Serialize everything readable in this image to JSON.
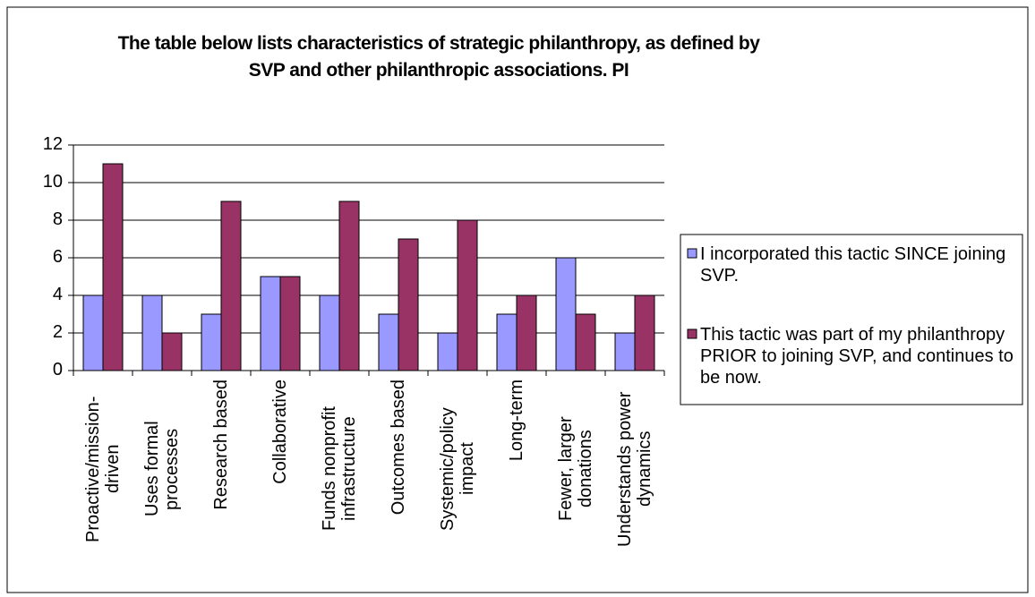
{
  "chart_data": {
    "type": "bar",
    "title": "The table below lists characteristics of strategic philanthropy, as defined by SVP and other philanthropic associations. PI",
    "categories": [
      "Proactive/mission-driven",
      "Uses formal processes",
      "Research based",
      "Collaborative",
      "Funds nonprofit infrastructure",
      "Outcomes based",
      "Systemic/policy impact",
      "Long-term",
      "Fewer, larger donations",
      "Understands power dynamics"
    ],
    "series": [
      {
        "name": "I incorporated this tactic SINCE joining SVP.",
        "color": "#9999ff",
        "values": [
          4,
          4,
          3,
          5,
          4,
          3,
          2,
          3,
          6,
          2
        ]
      },
      {
        "name": "This tactic was part of my philanthropy PRIOR to joining SVP, and continues to be now.",
        "color": "#993366",
        "values": [
          11,
          2,
          9,
          5,
          9,
          7,
          8,
          4,
          3,
          4
        ]
      }
    ],
    "ylim": [
      0,
      12
    ],
    "yticks": [
      0,
      2,
      4,
      6,
      8,
      10,
      12
    ],
    "grid": true,
    "legend": "right"
  }
}
